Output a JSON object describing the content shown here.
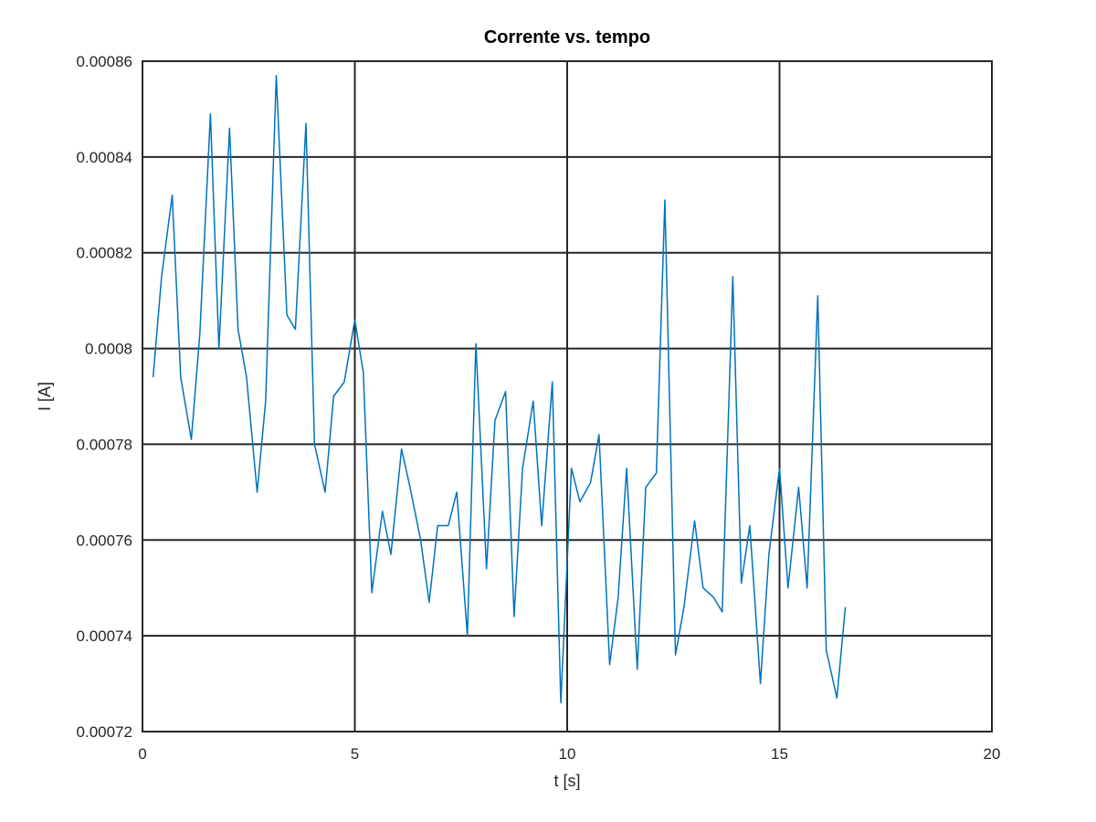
{
  "chart_data": {
    "type": "line",
    "title": "Corrente vs. tempo",
    "xlabel": "t [s]",
    "ylabel": "I [A]",
    "xlim": [
      0,
      20
    ],
    "ylim": [
      0.00072,
      0.00086
    ],
    "x_ticks": [
      0,
      5,
      10,
      15,
      20
    ],
    "x_tick_labels": [
      "0",
      "5",
      "10",
      "15",
      "20"
    ],
    "y_ticks": [
      0.00072,
      0.00074,
      0.00076,
      0.00078,
      0.0008,
      0.00082,
      0.00084,
      0.00086
    ],
    "y_tick_labels": [
      "0.00072",
      "0.00074",
      "0.00076",
      "0.00078",
      "0.0008",
      "0.00082",
      "0.00084",
      "0.00086"
    ],
    "grid": true,
    "series": [
      {
        "color": "#0072bd",
        "points": [
          [
            0.25,
            0.000794
          ],
          [
            0.45,
            0.000815
          ],
          [
            0.7,
            0.000832
          ],
          [
            0.9,
            0.000794
          ],
          [
            1.15,
            0.000781
          ],
          [
            1.35,
            0.000803
          ],
          [
            1.6,
            0.000849
          ],
          [
            1.8,
            0.0008
          ],
          [
            2.05,
            0.000846
          ],
          [
            2.25,
            0.000804
          ],
          [
            2.45,
            0.000794
          ],
          [
            2.7,
            0.00077
          ],
          [
            2.9,
            0.000789
          ],
          [
            3.15,
            0.000857
          ],
          [
            3.4,
            0.000807
          ],
          [
            3.6,
            0.000804
          ],
          [
            3.85,
            0.000847
          ],
          [
            4.05,
            0.00078
          ],
          [
            4.3,
            0.00077
          ],
          [
            4.5,
            0.00079
          ],
          [
            4.75,
            0.000793
          ],
          [
            5.0,
            0.000806
          ],
          [
            5.2,
            0.000795
          ],
          [
            5.4,
            0.000749
          ],
          [
            5.65,
            0.000766
          ],
          [
            5.85,
            0.000757
          ],
          [
            6.1,
            0.000779
          ],
          [
            6.3,
            0.000771
          ],
          [
            6.55,
            0.00076
          ],
          [
            6.75,
            0.000747
          ],
          [
            6.95,
            0.000763
          ],
          [
            7.2,
            0.000763
          ],
          [
            7.4,
            0.00077
          ],
          [
            7.65,
            0.00074
          ],
          [
            7.85,
            0.000801
          ],
          [
            8.1,
            0.000754
          ],
          [
            8.3,
            0.000785
          ],
          [
            8.55,
            0.000791
          ],
          [
            8.75,
            0.000744
          ],
          [
            8.95,
            0.000775
          ],
          [
            9.2,
            0.000789
          ],
          [
            9.4,
            0.000763
          ],
          [
            9.65,
            0.000793
          ],
          [
            9.85,
            0.000726
          ],
          [
            10.1,
            0.000775
          ],
          [
            10.3,
            0.000768
          ],
          [
            10.55,
            0.000772
          ],
          [
            10.75,
            0.000782
          ],
          [
            11.0,
            0.000734
          ],
          [
            11.2,
            0.000748
          ],
          [
            11.4,
            0.000775
          ],
          [
            11.65,
            0.000733
          ],
          [
            11.85,
            0.000771
          ],
          [
            12.1,
            0.000774
          ],
          [
            12.3,
            0.000831
          ],
          [
            12.55,
            0.000736
          ],
          [
            12.75,
            0.000746
          ],
          [
            13.0,
            0.000764
          ],
          [
            13.2,
            0.00075
          ],
          [
            13.45,
            0.000748
          ],
          [
            13.65,
            0.000745
          ],
          [
            13.9,
            0.000815
          ],
          [
            14.1,
            0.000751
          ],
          [
            14.3,
            0.000763
          ],
          [
            14.55,
            0.00073
          ],
          [
            14.75,
            0.000757
          ],
          [
            15.0,
            0.000775
          ],
          [
            15.2,
            0.00075
          ],
          [
            15.45,
            0.000771
          ],
          [
            15.65,
            0.00075
          ],
          [
            15.9,
            0.000811
          ],
          [
            16.1,
            0.000737
          ],
          [
            16.35,
            0.000727
          ],
          [
            16.55,
            0.000746
          ]
        ]
      }
    ]
  }
}
